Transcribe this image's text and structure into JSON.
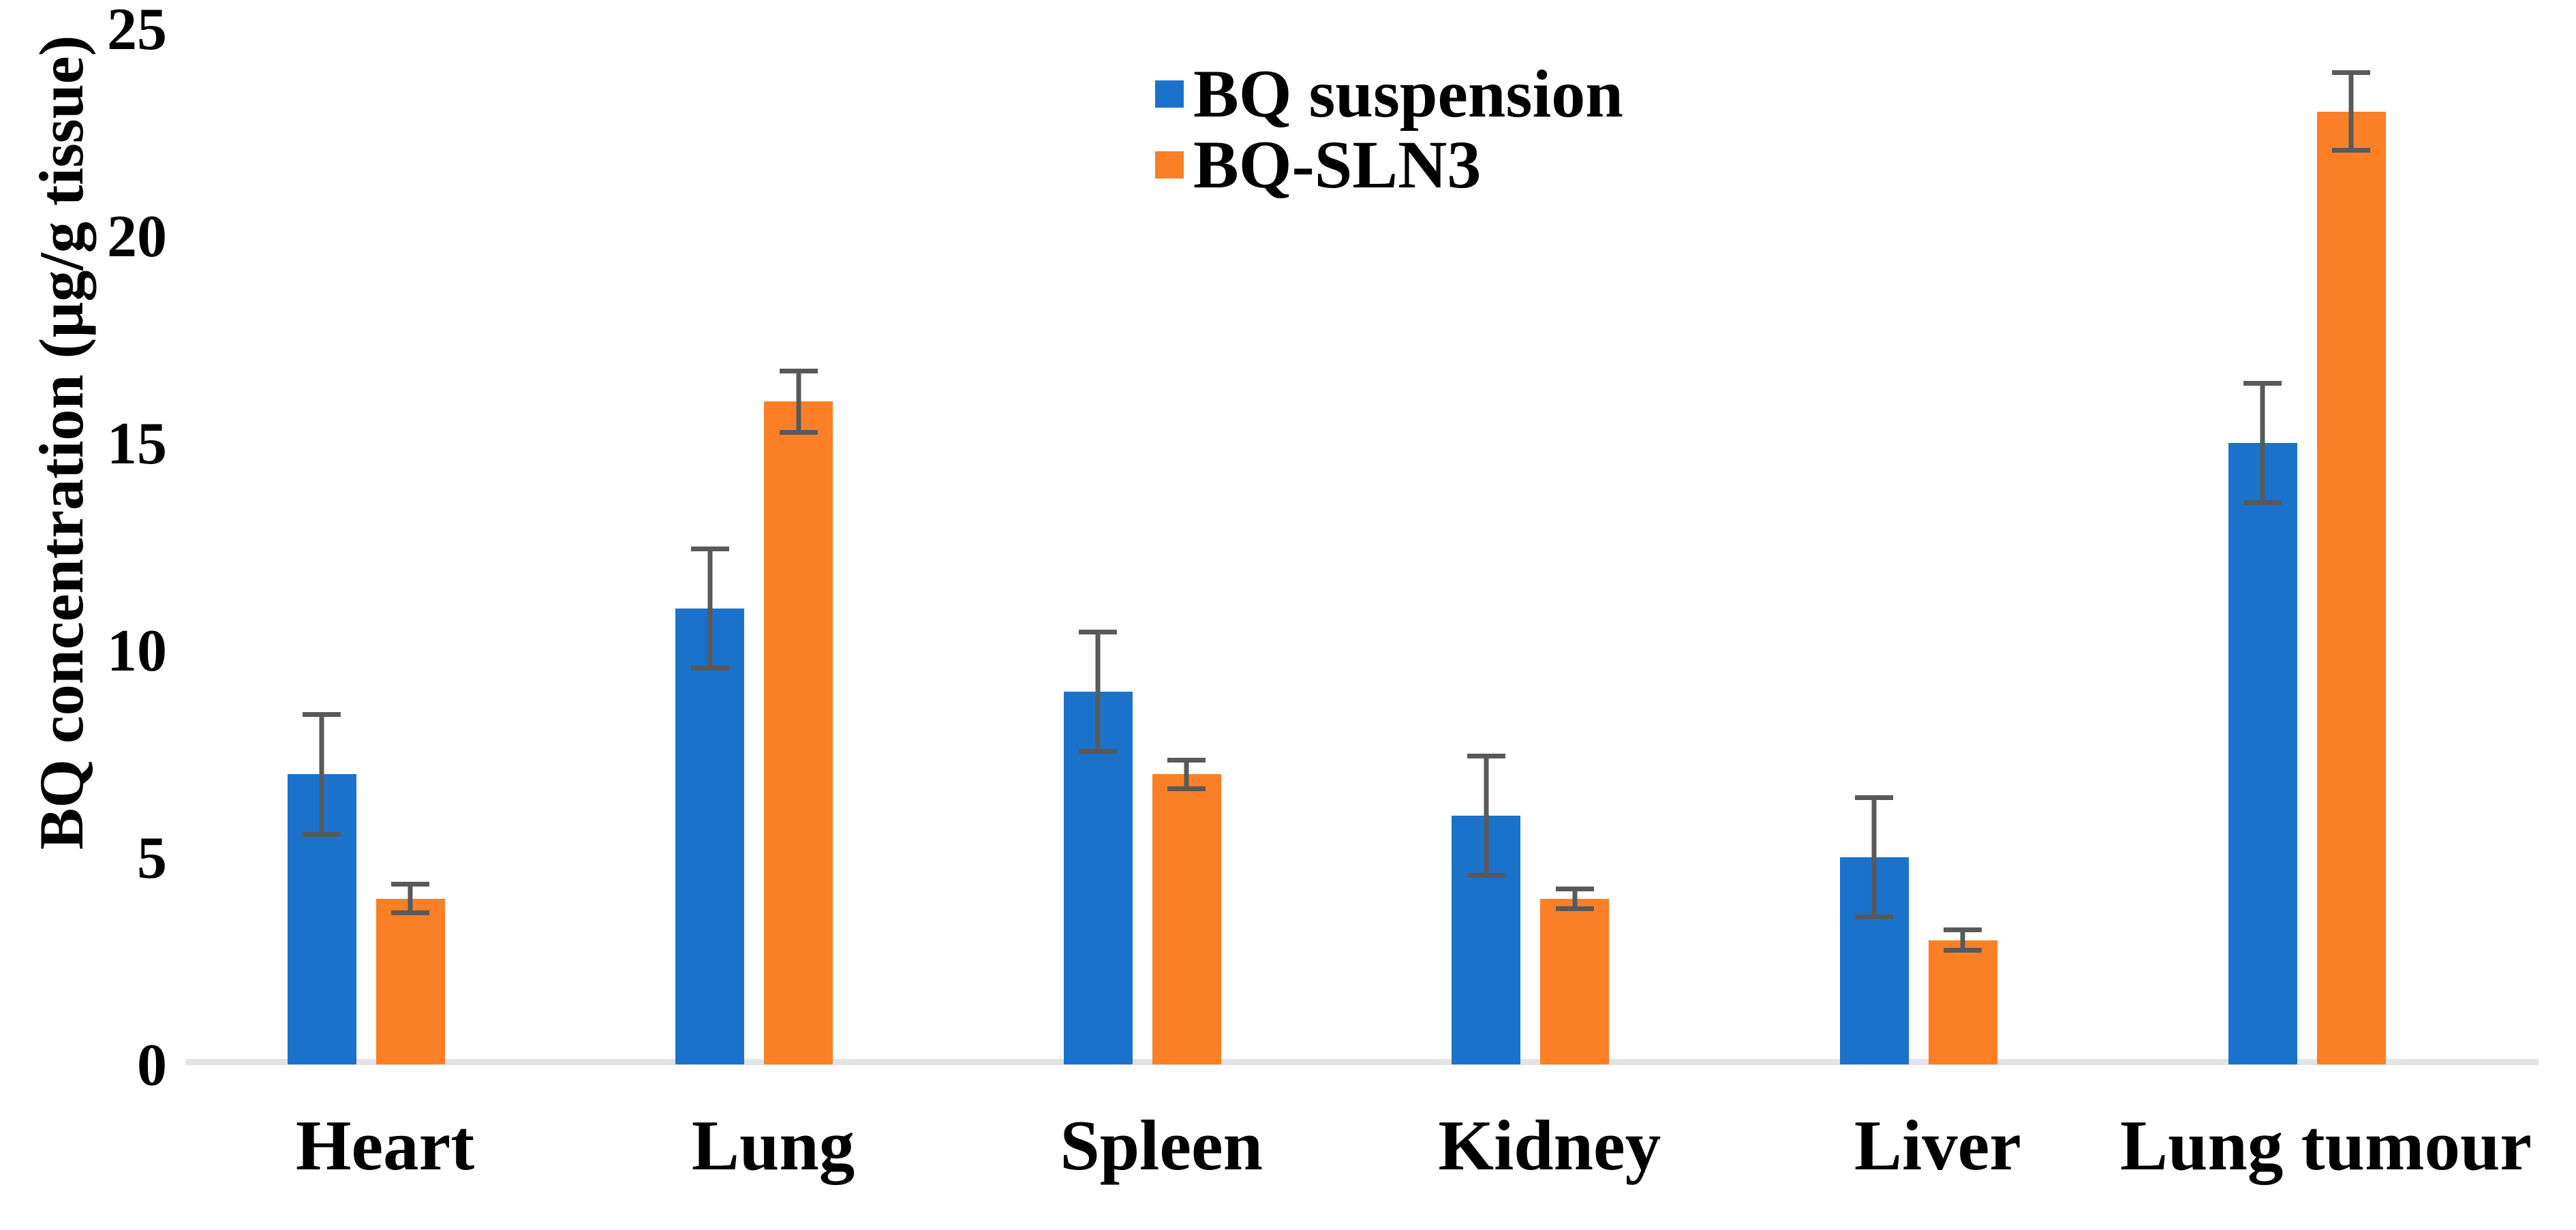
{
  "chart_data": {
    "type": "bar",
    "title": "",
    "categories": [
      "Heart",
      "Lung",
      "Spleen",
      "Kidney",
      "Liver",
      "Lung tumour"
    ],
    "series": [
      {
        "name": "BQ suspension",
        "color": "#1B72CB",
        "values": [
          7,
          11,
          9,
          6,
          5,
          15
        ],
        "errors": [
          1.5,
          1.5,
          1.5,
          1.5,
          1.5,
          1.5
        ]
      },
      {
        "name": "BQ-SLN3",
        "color": "#FB7F26",
        "values": [
          4,
          16,
          7,
          4,
          3,
          23
        ],
        "errors": [
          0.4,
          0.8,
          0.4,
          0.3,
          0.3,
          1.0
        ]
      }
    ],
    "xlabel": "",
    "ylabel": "BQ concentration (µg/g tissue)",
    "ylim": [
      0,
      25
    ],
    "yticks": [
      0,
      5,
      10,
      15,
      20,
      25
    ],
    "grid": false,
    "legend_position": "top-center",
    "error_bar_color": "#595959",
    "axis_line_color": "#E3E3E3",
    "text_color": "#000000",
    "background_color": "#FFFFFF"
  }
}
